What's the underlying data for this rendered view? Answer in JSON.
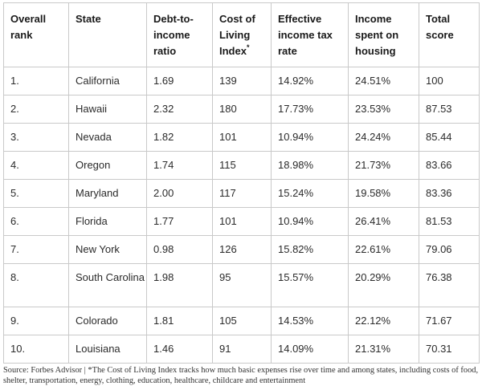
{
  "table": {
    "headers": [
      "Overall rank",
      "State",
      "Debt-to-income ratio",
      "Cost of Living Index",
      "Effective income tax rate",
      "Income spent on housing",
      "Total score"
    ],
    "cost_of_living_marker": "*",
    "rows": [
      [
        "1.",
        "California",
        "1.69",
        "139",
        "14.92%",
        "24.51%",
        "100"
      ],
      [
        "2.",
        "Hawaii",
        "2.32",
        "180",
        "17.73%",
        "23.53%",
        "87.53"
      ],
      [
        "3.",
        "Nevada",
        "1.82",
        "101",
        "10.94%",
        "24.24%",
        "85.44"
      ],
      [
        "4.",
        "Oregon",
        "1.74",
        "115",
        "18.98%",
        "21.73%",
        "83.66"
      ],
      [
        "5.",
        "Maryland",
        "2.00",
        "117",
        "15.24%",
        "19.58%",
        "83.36"
      ],
      [
        "6.",
        "Florida",
        "1.77",
        "101",
        "10.94%",
        "26.41%",
        "81.53"
      ],
      [
        "7.",
        "New York",
        "0.98",
        "126",
        "15.82%",
        "22.61%",
        "79.06"
      ],
      [
        "8.",
        "South Carolina",
        "1.98",
        "95",
        "15.57%",
        "20.29%",
        "76.38"
      ],
      [
        "9.",
        "Colorado",
        "1.81",
        "105",
        "14.53%",
        "22.12%",
        "71.67"
      ],
      [
        "10.",
        "Louisiana",
        "1.46",
        "91",
        "14.09%",
        "21.31%",
        "70.31"
      ]
    ]
  },
  "source_note": "Source: Forbes Advisor | *The Cost of Living Index tracks how much basic expenses rise over time and among states, including costs of food, shelter, transportation, energy, clothing, education, healthcare, childcare and entertainment"
}
